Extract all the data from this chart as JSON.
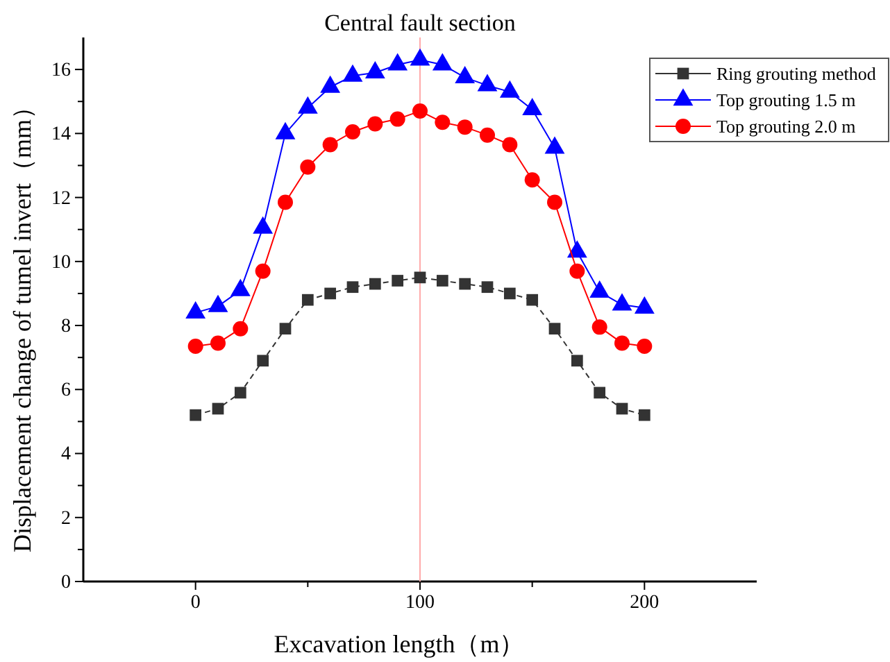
{
  "chart_data": {
    "type": "line",
    "title": "Central fault section",
    "xlabel": "Excavation length（m）",
    "ylabel": "Displacement change of tumel invert（mm）",
    "x": [
      0,
      10,
      20,
      30,
      40,
      50,
      60,
      70,
      80,
      90,
      100,
      110,
      120,
      130,
      140,
      150,
      160,
      170,
      180,
      190,
      200
    ],
    "series": [
      {
        "name": "Ring grouting method",
        "color": "#333333",
        "marker": "square",
        "line_style": "dashed",
        "values": [
          5.2,
          5.4,
          5.9,
          6.9,
          7.9,
          8.8,
          9.0,
          9.2,
          9.3,
          9.4,
          9.5,
          9.4,
          9.3,
          9.2,
          9.0,
          8.8,
          7.9,
          6.9,
          5.9,
          5.4,
          5.2
        ]
      },
      {
        "name": "Top grouting 1.5 m",
        "color": "#0000ff",
        "marker": "triangle",
        "values": [
          8.4,
          8.6,
          9.1,
          11.05,
          14.0,
          14.8,
          15.45,
          15.8,
          15.9,
          16.15,
          16.3,
          16.15,
          15.75,
          15.5,
          15.3,
          14.75,
          13.55,
          10.3,
          9.05,
          8.65,
          8.55
        ]
      },
      {
        "name": "Top grouting 2.0 m",
        "color": "#ff0000",
        "marker": "circle",
        "values": [
          7.35,
          7.45,
          7.9,
          9.7,
          11.85,
          12.95,
          13.65,
          14.05,
          14.3,
          14.45,
          14.7,
          14.35,
          14.2,
          13.95,
          13.65,
          12.55,
          11.85,
          9.7,
          7.95,
          7.45,
          7.35
        ]
      }
    ],
    "xlim": [
      -50,
      250
    ],
    "xticks": [
      0,
      {
        "value": 50,
        "label": null
      },
      100,
      {
        "value": 150,
        "label": null
      },
      200
    ],
    "ylim": [
      0,
      17
    ],
    "yticks": [
      0,
      {
        "value": 1,
        "label": null
      },
      2,
      {
        "value": 3,
        "label": null
      },
      4,
      {
        "value": 5,
        "label": null
      },
      6,
      {
        "value": 7,
        "label": null
      },
      8,
      {
        "value": 9,
        "label": null
      },
      10,
      {
        "value": 11,
        "label": null
      },
      12,
      {
        "value": 13,
        "label": null
      },
      14,
      {
        "value": 15,
        "label": null
      },
      16
    ],
    "ref_lines": [
      {
        "axis": "x",
        "value": 100,
        "color": "#ffaaaa"
      }
    ],
    "legend": "top right",
    "grid": false
  }
}
